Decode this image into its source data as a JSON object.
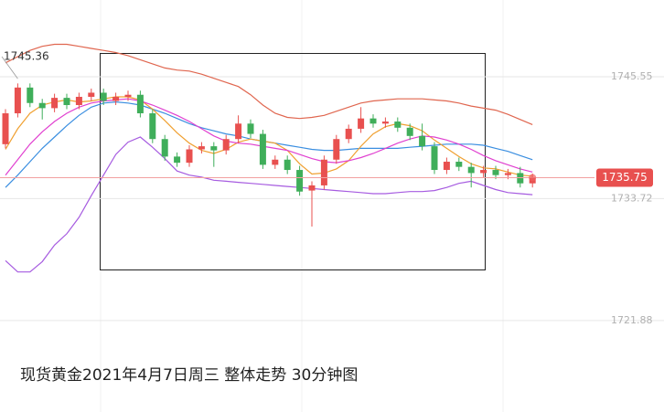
{
  "chart_data": {
    "type": "candlestick",
    "title": "现货黄金2021年4月7日周三  整体走势 30分钟图",
    "categories": [
      null,
      null,
      null,
      null,
      null,
      null,
      null,
      null,
      null,
      null,
      null,
      null,
      null,
      null,
      null,
      null,
      null,
      null,
      null,
      null,
      null,
      null,
      null,
      null,
      null,
      null,
      null,
      null,
      null,
      null,
      null,
      null,
      null,
      null,
      null,
      null,
      null,
      null,
      null,
      null,
      null,
      null,
      null,
      null
    ],
    "open": [
      1739,
      1742,
      1744.5,
      1743,
      1742.5,
      1743.5,
      1742.8,
      1743.6,
      1744,
      1743.2,
      1743.6,
      1743.8,
      1742,
      1739.5,
      1737.8,
      1737.2,
      1738.5,
      1738.8,
      1738.4,
      1739.5,
      1741,
      1740,
      1737,
      1737.5,
      1736.5,
      1734.5,
      1735,
      1737.5,
      1739.5,
      1740.5,
      1741.5,
      1741,
      1741.2,
      1740.6,
      1739.8,
      1738.8,
      1736.5,
      1737.3,
      1736.8,
      1736.2,
      1736.5,
      1736.0,
      1736.2,
      1735.2
    ],
    "high": [
      1742.4,
      1744.9,
      1744.9,
      1743.4,
      1743.9,
      1743.9,
      1744.0,
      1744.4,
      1744.4,
      1744.0,
      1744.2,
      1744.2,
      1742.4,
      1739.9,
      1738.2,
      1738.9,
      1739.2,
      1739.2,
      1739.9,
      1741.8,
      1741.4,
      1740.4,
      1737.9,
      1737.9,
      1736.9,
      1735.4,
      1737.9,
      1739.9,
      1740.9,
      1742.6,
      1741.9,
      1741.6,
      1741.6,
      1741.0,
      1741.0,
      1739.2,
      1737.7,
      1737.7,
      1737.2,
      1736.9,
      1736.9,
      1736.6,
      1736.8,
      1736.15
    ],
    "low": [
      1738.6,
      1741.6,
      1742.6,
      1741.4,
      1742.1,
      1742.4,
      1742.4,
      1743.2,
      1742.8,
      1742.8,
      1743.2,
      1741.6,
      1739.1,
      1737.4,
      1736.8,
      1736.8,
      1738.1,
      1736.8,
      1738.0,
      1739.1,
      1739.6,
      1736.6,
      1736.6,
      1736.1,
      1734.0,
      1731.0,
      1734.6,
      1737.1,
      1739.1,
      1740.1,
      1740.6,
      1740.6,
      1740.2,
      1739.4,
      1738.4,
      1736.1,
      1736.1,
      1736.4,
      1734.8,
      1735.8,
      1735.6,
      1735.6,
      1734.8,
      1734.8
    ],
    "close": [
      1742,
      1744.5,
      1743,
      1742.5,
      1743.5,
      1742.8,
      1743.6,
      1744,
      1743.2,
      1743.6,
      1743.8,
      1742,
      1739.5,
      1737.8,
      1737.2,
      1738.5,
      1738.8,
      1738.4,
      1739.5,
      1741,
      1740,
      1737,
      1737.5,
      1736.5,
      1734.4,
      1735,
      1737.5,
      1739.5,
      1740.5,
      1741.5,
      1741,
      1741.2,
      1740.6,
      1739.8,
      1738.8,
      1736.5,
      1737.3,
      1736.8,
      1736.2,
      1736.5,
      1736.0,
      1736.2,
      1735.2,
      1735.75
    ],
    "up_color": "#e8504f",
    "down_color": "#3fae5a",
    "series": [
      {
        "color": "#e0664f",
        "values": [
          1746.9,
          1747.5,
          1748.1,
          1748.5,
          1748.7,
          1748.7,
          1748.5,
          1748.3,
          1748.1,
          1747.9,
          1747.6,
          1747.2,
          1746.8,
          1746.4,
          1746.2,
          1746.1,
          1745.8,
          1745.4,
          1745.0,
          1744.6,
          1743.8,
          1742.8,
          1742.0,
          1741.6,
          1741.5,
          1741.6,
          1741.8,
          1742.2,
          1742.6,
          1743.0,
          1743.2,
          1743.3,
          1743.4,
          1743.4,
          1743.4,
          1743.3,
          1743.2,
          1743.0,
          1742.7,
          1742.5,
          1742.3,
          1741.9,
          1741.4,
          1740.9
        ]
      },
      {
        "color": "#3a8ee0",
        "values": [
          1734.8,
          1736.0,
          1737.3,
          1738.6,
          1739.7,
          1740.8,
          1741.8,
          1742.6,
          1743.0,
          1743.1,
          1743.0,
          1742.8,
          1742.4,
          1742.0,
          1741.5,
          1741.0,
          1740.6,
          1740.3,
          1740.0,
          1739.8,
          1739.5,
          1739.3,
          1739.1,
          1738.9,
          1738.7,
          1738.5,
          1738.4,
          1738.4,
          1738.5,
          1738.6,
          1738.6,
          1738.6,
          1738.6,
          1738.7,
          1738.8,
          1738.9,
          1739.0,
          1739.0,
          1739.0,
          1738.9,
          1738.6,
          1738.3,
          1737.9,
          1737.5
        ]
      },
      {
        "color": "#a65be0",
        "values": [
          1727.7,
          1726.6,
          1726.6,
          1727.6,
          1729.2,
          1730.3,
          1731.9,
          1734.0,
          1736.0,
          1738.0,
          1739.2,
          1739.7,
          1738.7,
          1737.6,
          1736.4,
          1736.0,
          1735.8,
          1735.5,
          1735.4,
          1735.3,
          1735.2,
          1735.1,
          1735.0,
          1734.9,
          1734.8,
          1734.7,
          1734.6,
          1734.5,
          1734.4,
          1734.3,
          1734.2,
          1734.2,
          1734.3,
          1734.4,
          1734.4,
          1734.5,
          1734.8,
          1735.2,
          1735.4,
          1735.0,
          1734.6,
          1734.3,
          1734.2,
          1734.1
        ]
      },
      {
        "color": "#f0a030",
        "values": [
          1738.5,
          1740.5,
          1742,
          1742.8,
          1743.1,
          1743.3,
          1743.1,
          1743.2,
          1743.4,
          1743.6,
          1743.6,
          1743.3,
          1742.4,
          1741.3,
          1740.1,
          1739.1,
          1738.4,
          1738.1,
          1738.5,
          1739.2,
          1739.5,
          1739.3,
          1739.1,
          1738.4,
          1737.1,
          1736.1,
          1736.2,
          1736.6,
          1737.4,
          1738.8,
          1740.0,
          1740.7,
          1741.0,
          1740.8,
          1740.3,
          1739.4,
          1738.6,
          1737.8,
          1737.1,
          1736.7,
          1736.6,
          1736.3,
          1736.0,
          1735.9
        ]
      },
      {
        "color": "#e040d0",
        "values": [
          1736.0,
          1737.5,
          1739.0,
          1740.2,
          1741.2,
          1742.0,
          1742.6,
          1743.0,
          1743.2,
          1743.3,
          1743.4,
          1743.2,
          1742.8,
          1742.3,
          1741.8,
          1741.2,
          1740.5,
          1739.8,
          1739.3,
          1739.1,
          1739.0,
          1738.8,
          1738.6,
          1738.4,
          1738.0,
          1737.6,
          1737.3,
          1737.2,
          1737.4,
          1737.7,
          1738.1,
          1738.6,
          1739.1,
          1739.5,
          1739.8,
          1739.7,
          1739.4,
          1739.0,
          1738.5,
          1737.9,
          1737.4,
          1737.0,
          1736.6,
          1736.3
        ]
      }
    ],
    "ylim": [
      1713.0,
      1753.0
    ],
    "yticks": [
      1745.55,
      1733.72,
      1721.88
    ],
    "grid": true,
    "high_marker": {
      "value": 1745.36,
      "label": "1745.36"
    },
    "last_price": {
      "value": 1735.75,
      "label": "1735.75"
    }
  }
}
